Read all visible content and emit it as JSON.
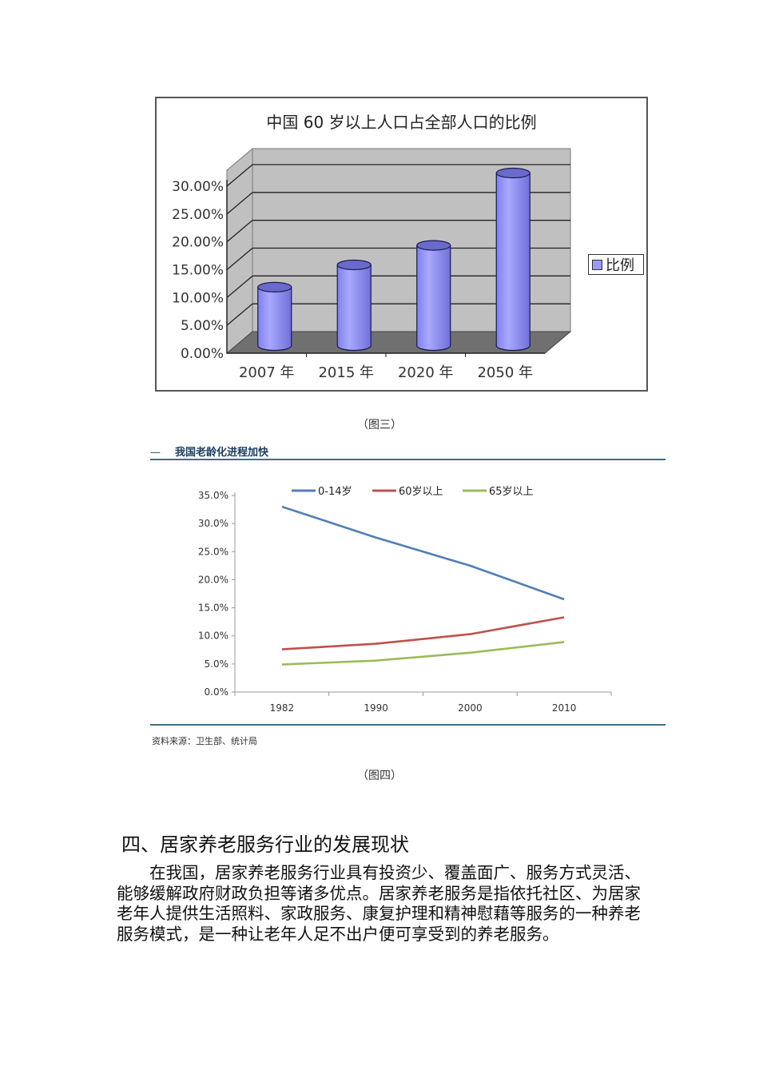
{
  "figure3": {
    "caption": "（图三）",
    "chart_data": {
      "type": "bar",
      "style": "3d-cylinder",
      "title": "中国 60 岁以上人口占全部人口的比例",
      "categories": [
        "2007 年",
        "2015 年",
        "2020 年",
        "2050 年"
      ],
      "series": [
        {
          "name": "比例",
          "values": [
            10.5,
            14.5,
            18.0,
            31.0
          ],
          "color": "#9999ff"
        }
      ],
      "yticks": [
        "0.00%",
        "5.00%",
        "10.00%",
        "15.00%",
        "20.00%",
        "25.00%",
        "30.00%"
      ],
      "ylim": [
        0,
        30
      ],
      "grid": true,
      "legend_position": "right",
      "xlabel": "",
      "ylabel": ""
    }
  },
  "figure4": {
    "header": "我国老龄化进程加快",
    "source": "资料来源：卫生部、统计局",
    "caption": "（图四）",
    "chart_data": {
      "type": "line",
      "title": "",
      "x": [
        "1982",
        "1990",
        "2000",
        "2010"
      ],
      "series": [
        {
          "name": "0-14岁",
          "values": [
            33.0,
            27.5,
            22.5,
            16.5
          ],
          "color": "#4f7fb5"
        },
        {
          "name": "60岁以上",
          "values": [
            7.6,
            8.6,
            10.3,
            13.3
          ],
          "color": "#c0504d"
        },
        {
          "name": "65岁以上",
          "values": [
            4.9,
            5.6,
            7.0,
            8.9
          ],
          "color": "#9bbb59"
        }
      ],
      "yticks": [
        "0.0%",
        "5.0%",
        "10.0%",
        "15.0%",
        "20.0%",
        "25.0%",
        "30.0%",
        "35.0%"
      ],
      "ylim": [
        0,
        35
      ],
      "grid": false,
      "legend_position": "top",
      "xlabel": "",
      "ylabel": ""
    }
  },
  "section": {
    "heading": "四、居家养老服务行业的发展现状",
    "paragraph": "在我国，居家养老服务行业具有投资少、覆盖面广、服务方式灵活、能够缓解政府财政负担等诸多优点。居家养老服务是指依托社区、为居家老年人提供生活照料、家政服务、康复护理和精神慰藉等服务的一种养老服务模式，是一种让老年人足不出户便可享受到的养老服务。"
  }
}
